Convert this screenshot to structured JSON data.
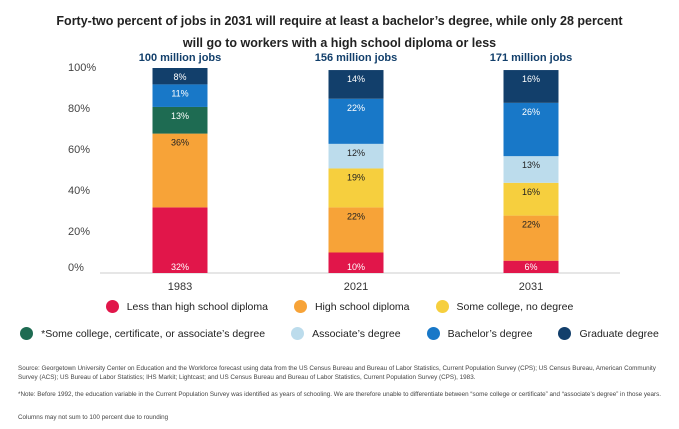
{
  "chart_data": {
    "type": "bar",
    "stacked": true,
    "title_line1": "Forty-two percent of jobs in 2031 will require at least a bachelor’s degree, while only 28 percent",
    "title_line2": "will go to workers with a high school diploma or less",
    "categories": [
      "1983",
      "2021",
      "2031"
    ],
    "totals": [
      "100 million jobs",
      "156 million jobs",
      "171 million jobs"
    ],
    "ylim": [
      0,
      100
    ],
    "yticks": [
      "0%",
      "20%",
      "40%",
      "60%",
      "80%",
      "100%"
    ],
    "ytick_values": [
      0,
      20,
      40,
      60,
      80,
      100
    ],
    "grid": false,
    "series": [
      {
        "name": "Less than high school diploma",
        "color": "#e1164a",
        "label_color": "#ffffff",
        "values": [
          32,
          10,
          6
        ],
        "labels": [
          "32%",
          "10%",
          "6%"
        ]
      },
      {
        "name": "High school diploma",
        "color": "#f7a338",
        "label_color": "#222222",
        "values": [
          36,
          22,
          22
        ],
        "labels": [
          "36%",
          "22%",
          "22%"
        ]
      },
      {
        "name": "Some college, no degree",
        "color": "#f6cf3e",
        "label_color": "#222222",
        "values": [
          0,
          19,
          16
        ],
        "labels": [
          "",
          "19%",
          "16%"
        ]
      },
      {
        "name": "*Some college, certificate, or associate’s degree",
        "color": "#1e6b52",
        "label_color": "#ffffff",
        "values": [
          13,
          0,
          0
        ],
        "labels": [
          "13%",
          "",
          ""
        ]
      },
      {
        "name": "Associate’s degree",
        "color": "#bcdcec",
        "label_color": "#222222",
        "values": [
          0,
          12,
          13
        ],
        "labels": [
          "",
          "12%",
          "13%"
        ]
      },
      {
        "name": "Bachelor’s degree",
        "color": "#1878c8",
        "label_color": "#ffffff",
        "values": [
          11,
          22,
          26
        ],
        "labels": [
          "11%",
          "22%",
          "26%"
        ]
      },
      {
        "name": "Graduate degree",
        "color": "#123f6b",
        "label_color": "#ffffff",
        "values": [
          8,
          14,
          16
        ],
        "labels": [
          "8%",
          "14%",
          "16%"
        ]
      }
    ]
  },
  "legend": {
    "row1": [
      {
        "label": "Less than high school diploma",
        "color": "#e1164a"
      },
      {
        "label": "High school diploma",
        "color": "#f7a338"
      },
      {
        "label": "Some college, no degree",
        "color": "#f6cf3e"
      }
    ],
    "row2": [
      {
        "label": "*Some college, certificate, or associate’s degree",
        "color": "#1e6b52"
      },
      {
        "label": "Associate’s degree",
        "color": "#bcdcec"
      },
      {
        "label": "Bachelor’s degree",
        "color": "#1878c8"
      },
      {
        "label": "Graduate degree",
        "color": "#123f6b"
      }
    ]
  },
  "notes": {
    "source": "Source: Georgetown University Center on Education and the Workforce forecast using data from the US Census Bureau and Bureau of Labor Statistics, Current Population Survey (CPS); US Census Bureau, American Community Survey (ACS); US Bureau of Labor Statistics; IHS Markit; Lightcast; and US Census Bureau and Bureau of Labor Statistics, Current Population Survey (CPS), 1983.",
    "footnote": "*Note: Before 1992, the education variable in the Current Population Survey was identified as years of schooling. We are therefore unable to differentiate between “some college or certificate” and “associate’s degree” in those years.",
    "rounding": "Columns may not sum to 100 percent due to rounding"
  },
  "colors": {
    "title_total": "#123f6b",
    "axis": "#cccccc"
  }
}
